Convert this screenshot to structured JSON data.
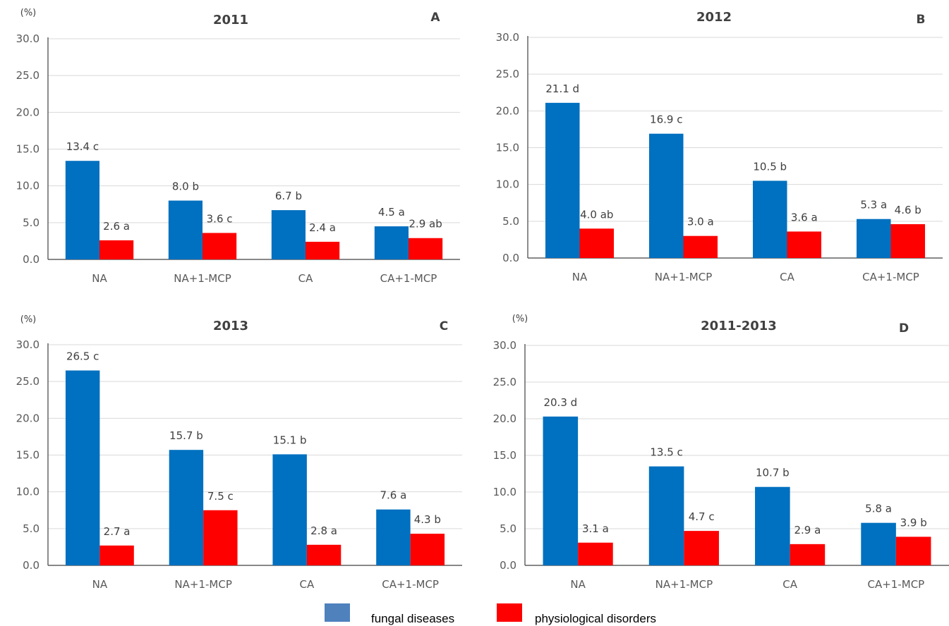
{
  "chart_data": [
    {
      "type": "bar",
      "title": "2011",
      "panel": "A",
      "unit": "(%)",
      "categories": [
        "NA",
        "NA+1-MCP",
        "CA",
        "CA+1-MCP"
      ],
      "ylim": [
        0,
        30
      ],
      "yticks": [
        "0.0",
        "5.0",
        "10.0",
        "15.0",
        "20.0",
        "25.0",
        "30.0"
      ],
      "grid": true,
      "series": [
        {
          "name": "fungal diseases",
          "values": [
            13.4,
            8.0,
            6.7,
            4.5
          ],
          "labels": [
            "13.4 c",
            "8.0 b",
            "6.7 b",
            "4.5 a"
          ]
        },
        {
          "name": "physiological disorders",
          "values": [
            2.6,
            3.6,
            2.4,
            2.9
          ],
          "labels": [
            "2.6 a",
            "3.6 c",
            "2.4 a",
            "2.9 ab"
          ]
        }
      ]
    },
    {
      "type": "bar",
      "title": "2012",
      "panel": "B",
      "unit": "",
      "categories": [
        "NA",
        "NA+1-MCP",
        "CA",
        "CA+1-MCP"
      ],
      "ylim": [
        0,
        30
      ],
      "yticks": [
        "0.0",
        "5.0",
        "10.0",
        "15.0",
        "20.0",
        "25.0",
        "30.0"
      ],
      "grid": true,
      "series": [
        {
          "name": "fungal diseases",
          "values": [
            21.1,
            16.9,
            10.5,
            5.3
          ],
          "labels": [
            "21.1 d",
            "16.9 c",
            "10.5 b",
            "5.3 a"
          ]
        },
        {
          "name": "physiological disorders",
          "values": [
            4.0,
            3.0,
            3.6,
            4.6
          ],
          "labels": [
            "4.0 ab",
            "3.0 a",
            "3.6 a",
            "4.6 b"
          ]
        }
      ]
    },
    {
      "type": "bar",
      "title": "2013",
      "panel": "C",
      "unit": "(%)",
      "categories": [
        "NA",
        "NA+1-MCP",
        "CA",
        "CA+1-MCP"
      ],
      "ylim": [
        0,
        30
      ],
      "yticks": [
        "0.0",
        "5.0",
        "10.0",
        "15.0",
        "20.0",
        "25.0",
        "30.0"
      ],
      "grid": true,
      "series": [
        {
          "name": "fungal diseases",
          "values": [
            26.5,
            15.7,
            15.1,
            7.6
          ],
          "labels": [
            "26.5 c",
            "15.7 b",
            "15.1 b",
            "7.6 a"
          ]
        },
        {
          "name": "physiological disorders",
          "values": [
            2.7,
            7.5,
            2.8,
            4.3
          ],
          "labels": [
            "2.7 a",
            "7.5 c",
            "2.8 a",
            "4.3 b"
          ]
        }
      ]
    },
    {
      "type": "bar",
      "title": "2011-2013",
      "panel": "D",
      "unit": "(%)",
      "categories": [
        "NA",
        "NA+1-MCP",
        "CA",
        "CA+1-MCP"
      ],
      "ylim": [
        0,
        30
      ],
      "yticks": [
        "0.0",
        "5.0",
        "10.0",
        "15.0",
        "20.0",
        "25.0",
        "30.0"
      ],
      "grid": true,
      "series": [
        {
          "name": "fungal diseases",
          "values": [
            20.3,
            13.5,
            10.7,
            5.8
          ],
          "labels": [
            "20.3 d",
            "13.5 c",
            "10.7 b",
            "5.8 a"
          ]
        },
        {
          "name": "physiological disorders",
          "values": [
            3.1,
            4.7,
            2.9,
            3.9
          ],
          "labels": [
            "3.1 a",
            "4.7 c",
            "2.9 a",
            "3.9 b"
          ]
        }
      ]
    }
  ],
  "legend": {
    "placement": "bottom-center",
    "items": [
      {
        "label": "fungal diseases",
        "color": "#4f81bd"
      },
      {
        "label": "physiological disorders",
        "color": "#ff0000"
      }
    ]
  },
  "colors": {
    "fungal_bars": "#0070c0",
    "physiological_bars": "#ff0000"
  }
}
